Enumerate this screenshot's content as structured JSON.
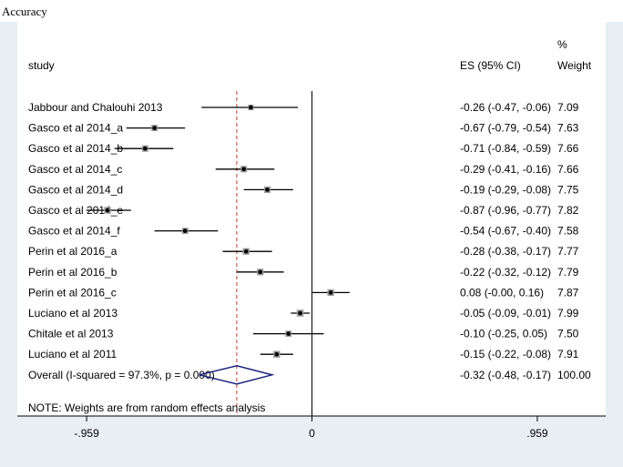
{
  "caption": "Accuracy",
  "header": {
    "study": "study",
    "es_ci": "ES (95% CI)",
    "weight_line1": "%",
    "weight_line2": "Weight"
  },
  "note": "NOTE: Weights are from random effects analysis",
  "colors": {
    "panel_background": "#e9eef3",
    "plot_background": "#ffffff",
    "marker": "#000000",
    "ci_line": "#000000",
    "diamond": "#1a237e",
    "overall_line": "#c0392b"
  },
  "chart_data": {
    "type": "forest",
    "xlim": [
      -1.25,
      1.25
    ],
    "xticks": [
      {
        "value": -0.959,
        "label": "-.959"
      },
      {
        "value": 0,
        "label": "0"
      },
      {
        "value": 0.959,
        "label": ".959"
      }
    ],
    "null_line": 0,
    "overall_line": -0.32,
    "studies": [
      {
        "label": "Jabbour and Chalouhi 2013",
        "es": -0.26,
        "lo": -0.47,
        "hi": -0.06,
        "weight": 7.09,
        "es_text": "-0.26 (-0.47, -0.06)",
        "weight_text": "7.09"
      },
      {
        "label": "Gasco et al 2014_a",
        "es": -0.67,
        "lo": -0.79,
        "hi": -0.54,
        "weight": 7.63,
        "es_text": "-0.67 (-0.79, -0.54)",
        "weight_text": "7.63"
      },
      {
        "label": "Gasco et al 2014_b",
        "es": -0.71,
        "lo": -0.84,
        "hi": -0.59,
        "weight": 7.66,
        "es_text": "-0.71 (-0.84, -0.59)",
        "weight_text": "7.66"
      },
      {
        "label": "Gasco et al 2014_c",
        "es": -0.29,
        "lo": -0.41,
        "hi": -0.16,
        "weight": 7.66,
        "es_text": "-0.29 (-0.41, -0.16)",
        "weight_text": "7.66"
      },
      {
        "label": "Gasco et al 2014_d",
        "es": -0.19,
        "lo": -0.29,
        "hi": -0.08,
        "weight": 7.75,
        "es_text": "-0.19 (-0.29, -0.08)",
        "weight_text": "7.75"
      },
      {
        "label": "Gasco et al 2014_e",
        "es": -0.87,
        "lo": -0.96,
        "hi": -0.77,
        "weight": 7.82,
        "es_text": "-0.87 (-0.96, -0.77)",
        "weight_text": "7.82"
      },
      {
        "label": "Gasco et al 2014_f",
        "es": -0.54,
        "lo": -0.67,
        "hi": -0.4,
        "weight": 7.58,
        "es_text": "-0.54 (-0.67, -0.40)",
        "weight_text": "7.58"
      },
      {
        "label": "Perin et al 2016_a",
        "es": -0.28,
        "lo": -0.38,
        "hi": -0.17,
        "weight": 7.77,
        "es_text": "-0.28 (-0.38, -0.17)",
        "weight_text": "7.77"
      },
      {
        "label": "Perin et al 2016_b",
        "es": -0.22,
        "lo": -0.32,
        "hi": -0.12,
        "weight": 7.79,
        "es_text": "-0.22 (-0.32, -0.12)",
        "weight_text": "7.79"
      },
      {
        "label": "Perin et al 2016_c",
        "es": 0.08,
        "lo": -0.0,
        "hi": 0.16,
        "weight": 7.87,
        "es_text": "0.08 (-0.00, 0.16)",
        "weight_text": "7.87"
      },
      {
        "label": "Luciano et al 2013",
        "es": -0.05,
        "lo": -0.09,
        "hi": -0.01,
        "weight": 7.99,
        "es_text": "-0.05 (-0.09, -0.01)",
        "weight_text": "7.99"
      },
      {
        "label": "Chitale et al 2013",
        "es": -0.1,
        "lo": -0.25,
        "hi": 0.05,
        "weight": 7.5,
        "es_text": "-0.10 (-0.25, 0.05)",
        "weight_text": "7.50"
      },
      {
        "label": "Luciano et al 2011",
        "es": -0.15,
        "lo": -0.22,
        "hi": -0.08,
        "weight": 7.91,
        "es_text": "-0.15 (-0.22, -0.08)",
        "weight_text": "7.91"
      }
    ],
    "overall": {
      "label": "Overall  (I-squared = 97.3%, p = 0.000)",
      "es": -0.32,
      "lo": -0.48,
      "hi": -0.17,
      "es_text": "-0.32 (-0.48, -0.17)",
      "weight_text": "100.00"
    }
  }
}
